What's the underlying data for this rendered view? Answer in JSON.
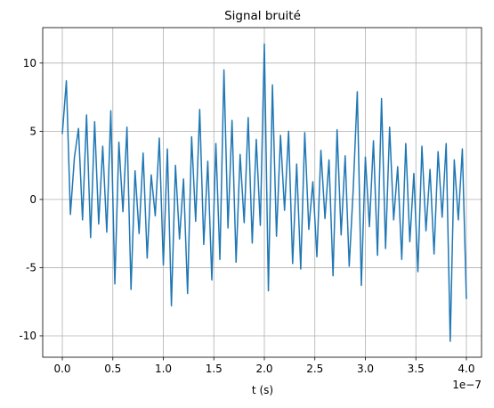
{
  "chart_data": {
    "type": "line",
    "title": "Signal bruité",
    "xlabel": "t (s)",
    "x_offset_label": "1e−7",
    "x": [
      0,
      0.04,
      0.08,
      0.12,
      0.16,
      0.2,
      0.24,
      0.28,
      0.32,
      0.36,
      0.4,
      0.44,
      0.48,
      0.52,
      0.56,
      0.6,
      0.64,
      0.68,
      0.72,
      0.76,
      0.8,
      0.84,
      0.88,
      0.92,
      0.96,
      1.0,
      1.04,
      1.08,
      1.12,
      1.16,
      1.2,
      1.24,
      1.28,
      1.32,
      1.36,
      1.4,
      1.44,
      1.48,
      1.52,
      1.56,
      1.6,
      1.64,
      1.68,
      1.72,
      1.76,
      1.8,
      1.84,
      1.88,
      1.92,
      1.96,
      2.0,
      2.04,
      2.08,
      2.12,
      2.16,
      2.2,
      2.24,
      2.28,
      2.32,
      2.36,
      2.4,
      2.44,
      2.48,
      2.52,
      2.56,
      2.6,
      2.64,
      2.68,
      2.72,
      2.76,
      2.8,
      2.84,
      2.88,
      2.92,
      2.96,
      3.0,
      3.04,
      3.08,
      3.12,
      3.16,
      3.2,
      3.24,
      3.28,
      3.32,
      3.36,
      3.4,
      3.44,
      3.48,
      3.52,
      3.56,
      3.6,
      3.64,
      3.68,
      3.72,
      3.76,
      3.8,
      3.84,
      3.88,
      3.92,
      3.96,
      4.0
    ],
    "series": [
      {
        "color": "#1f77b4",
        "values": [
          4.8,
          8.7,
          -1.1,
          3.1,
          5.2,
          -1.5,
          6.2,
          -2.8,
          5.7,
          -1.8,
          3.9,
          -2.4,
          6.5,
          -6.2,
          4.2,
          -0.9,
          5.3,
          -6.6,
          2.1,
          -2.5,
          3.4,
          -4.3,
          1.8,
          -1.2,
          4.5,
          -4.8,
          3.7,
          -7.8,
          2.5,
          -2.9,
          1.5,
          -6.9,
          4.6,
          -1.6,
          6.6,
          -3.3,
          2.8,
          -5.9,
          4.1,
          -4.4,
          9.5,
          -2.1,
          5.8,
          -4.6,
          3.3,
          -1.7,
          6.0,
          -3.2,
          4.4,
          -1.9,
          11.4,
          -6.7,
          8.4,
          -2.7,
          4.7,
          -0.8,
          5.0,
          -4.7,
          2.6,
          -5.1,
          4.9,
          -2.2,
          1.3,
          -4.2,
          3.6,
          -1.4,
          2.9,
          -5.6,
          5.1,
          -2.6,
          3.2,
          -4.9,
          0.8,
          7.9,
          -6.3,
          3.1,
          -2.0,
          4.3,
          -4.1,
          7.4,
          -3.6,
          5.3,
          -1.5,
          2.4,
          -4.4,
          4.1,
          -3.1,
          1.9,
          -5.3,
          3.9,
          -2.3,
          2.2,
          -4.0,
          3.5,
          -1.3,
          4.1,
          -10.4,
          2.9,
          -1.5,
          3.7,
          -7.3
        ]
      }
    ],
    "xlim": [
      -0.194,
      4.15
    ],
    "ylim": [
      -11.57,
      12.6
    ],
    "xticks": [
      {
        "value": 0,
        "label": "0.0"
      },
      0.5,
      {
        "value": 1,
        "label": "1.0"
      },
      1.5,
      {
        "value": 2,
        "label": "2.0"
      },
      2.5,
      {
        "value": 3,
        "label": "3.0"
      },
      3.5,
      {
        "value": 4,
        "label": "4.0"
      }
    ],
    "yticks": [
      -10,
      -5,
      0,
      5,
      10
    ],
    "grid": true
  }
}
